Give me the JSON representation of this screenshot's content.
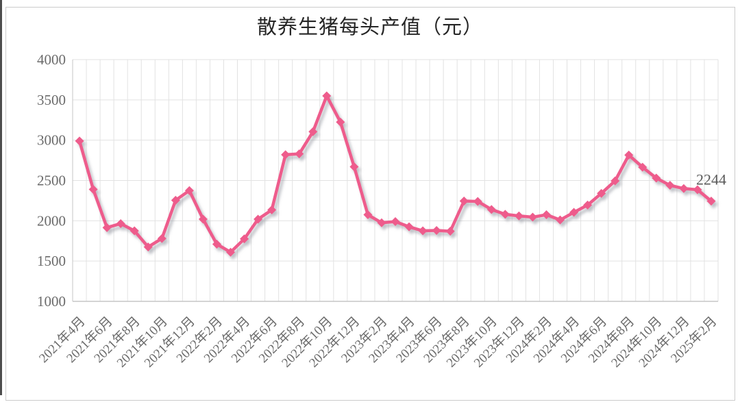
{
  "page": {
    "title": "散养生猪每头产值（元）"
  },
  "chart_data": {
    "type": "line",
    "title": "散养生猪每头产值（元）",
    "unit": "元",
    "categories": [
      "2021年4月",
      "2021年5月",
      "2021年6月",
      "2021年7月",
      "2021年8月",
      "2021年9月",
      "2021年10月",
      "2021年11月",
      "2021年12月",
      "2022年1月",
      "2022年2月",
      "2022年3月",
      "2022年4月",
      "2022年5月",
      "2022年6月",
      "2022年7月",
      "2022年8月",
      "2022年9月",
      "2022年10月",
      "2022年11月",
      "2022年12月",
      "2023年1月",
      "2023年2月",
      "2023年3月",
      "2023年4月",
      "2023年5月",
      "2023年6月",
      "2023年7月",
      "2023年8月",
      "2023年9月",
      "2023年10月",
      "2023年11月",
      "2023年12月",
      "2024年1月",
      "2024年2月",
      "2024年3月",
      "2024年4月",
      "2024年5月",
      "2024年6月",
      "2024年7月",
      "2024年8月",
      "2024年9月",
      "2024年10月",
      "2024年11月",
      "2024年12月",
      "2025年1月",
      "2025年2月"
    ],
    "values": [
      2990,
      2390,
      1915,
      1965,
      1875,
      1675,
      1780,
      2255,
      2375,
      2020,
      1710,
      1610,
      1775,
      2020,
      2135,
      2820,
      2830,
      3105,
      3550,
      3225,
      2670,
      2075,
      1975,
      1990,
      1925,
      1875,
      1880,
      1870,
      2245,
      2240,
      2140,
      2080,
      2060,
      2045,
      2075,
      2010,
      2105,
      2195,
      2340,
      2495,
      2815,
      2665,
      2530,
      2440,
      2400,
      2385,
      2244
    ],
    "x_tick_labels": [
      "2021年4月",
      "2021年6月",
      "2021年8月",
      "2021年10月",
      "2021年12月",
      "2022年2月",
      "2022年4月",
      "2022年6月",
      "2022年8月",
      "2022年10月",
      "2022年12月",
      "2023年2月",
      "2023年4月",
      "2023年6月",
      "2023年8月",
      "2023年10月",
      "2023年12月",
      "2024年2月",
      "2024年4月",
      "2024年6月",
      "2024年8月",
      "2024年10月",
      "2024年12月",
      "2025年2月"
    ],
    "y_ticks": [
      4000,
      3500,
      3000,
      2500,
      2000,
      1500,
      1000
    ],
    "ylim": [
      1000,
      4000
    ],
    "end_label": "2244",
    "grid": true,
    "legend": "none",
    "line_color": "#ee5c8c",
    "marker_color": "#ee5c8c",
    "shadow_color": "#8a8f98",
    "grid_color": "#e2e2e2",
    "axis_line_color": "#c6c6c6",
    "axis_text_color": "#6b6b6b",
    "title_color": "#262626",
    "end_label_color": "#595959"
  }
}
